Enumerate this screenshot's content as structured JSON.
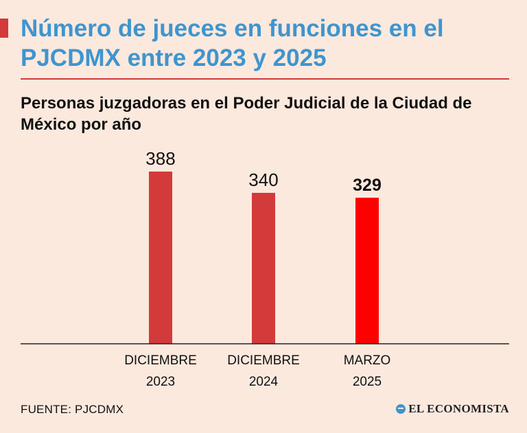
{
  "header": {
    "title": "Número de jueces en funciones en el PJCDMX entre 2023 y 2025",
    "subtitle": "Personas juzgadoras en el Poder Judicial de la Ciudad de México por año"
  },
  "footer": {
    "source": "FUENTE: PJCDMX",
    "logo_text": "EL ECONOMISTA"
  },
  "colors": {
    "accent": "#d33a3a",
    "title": "#3e95cf",
    "bar": "#d33a3a",
    "highlight_bar": "#ff0000",
    "background": "#fbe9de"
  },
  "chart_data": {
    "type": "bar",
    "categories": [
      [
        "DICIEMBRE",
        "2023"
      ],
      [
        "DICIEMBRE",
        "2024"
      ],
      [
        "MARZO",
        "2025"
      ]
    ],
    "values": [
      388,
      340,
      329
    ],
    "data_labels": [
      "388",
      "340",
      "329"
    ],
    "highlight_index": 2,
    "title": "Personas juzgadoras en el Poder Judicial de la Ciudad de México por año",
    "xlabel": "",
    "ylabel": "",
    "ylim": [
      0,
      388
    ],
    "grid": false,
    "legend": "none"
  }
}
